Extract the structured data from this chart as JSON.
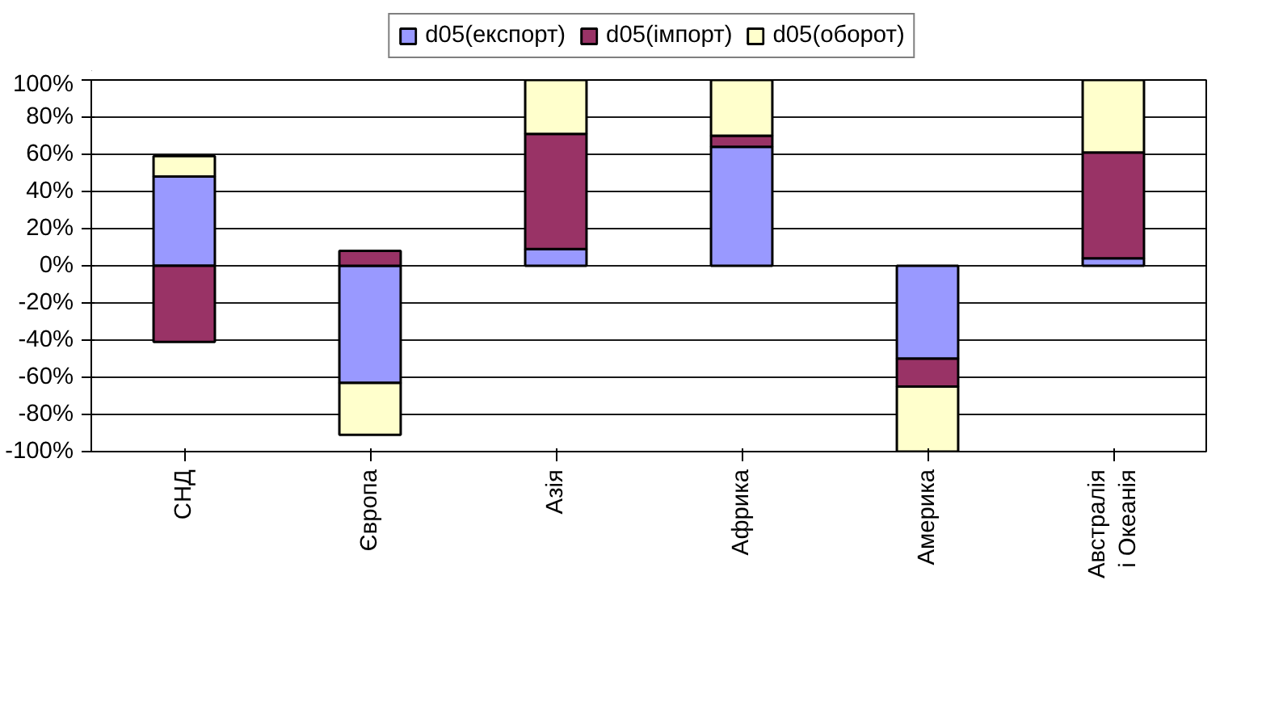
{
  "chart_data": {
    "type": "bar",
    "stacked": true,
    "categories": [
      "СНД",
      "Європа",
      "Азія",
      "Африка",
      "Америка",
      "Австралія і Океанія"
    ],
    "series": [
      {
        "name": "d05(експорт)",
        "color": "#9999ff",
        "values": [
          48,
          -63,
          9,
          64,
          -50,
          4
        ]
      },
      {
        "name": "d05(імпорт)",
        "color": "#993366",
        "values": [
          -41,
          8,
          62,
          6,
          -15,
          57
        ]
      },
      {
        "name": "d05(оборот)",
        "color": "#ffffcc",
        "values": [
          11,
          -28,
          29,
          30,
          -35,
          39
        ]
      }
    ],
    "ylim": [
      -100,
      100
    ],
    "yticks": [
      {
        "value": -100,
        "label": "-100%"
      },
      {
        "value": -80,
        "label": "-80%"
      },
      {
        "value": -60,
        "label": "-60%"
      },
      {
        "value": -40,
        "label": "-40%"
      },
      {
        "value": -20,
        "label": "-20%"
      },
      {
        "value": 0,
        "label": "0%"
      },
      {
        "value": 20,
        "label": "20%"
      },
      {
        "value": 40,
        "label": "40%"
      },
      {
        "value": 60,
        "label": "60%"
      },
      {
        "value": 80,
        "label": "80%"
      },
      {
        "value": 100,
        "label": "100%"
      }
    ],
    "grid": "y",
    "legend": "top"
  }
}
